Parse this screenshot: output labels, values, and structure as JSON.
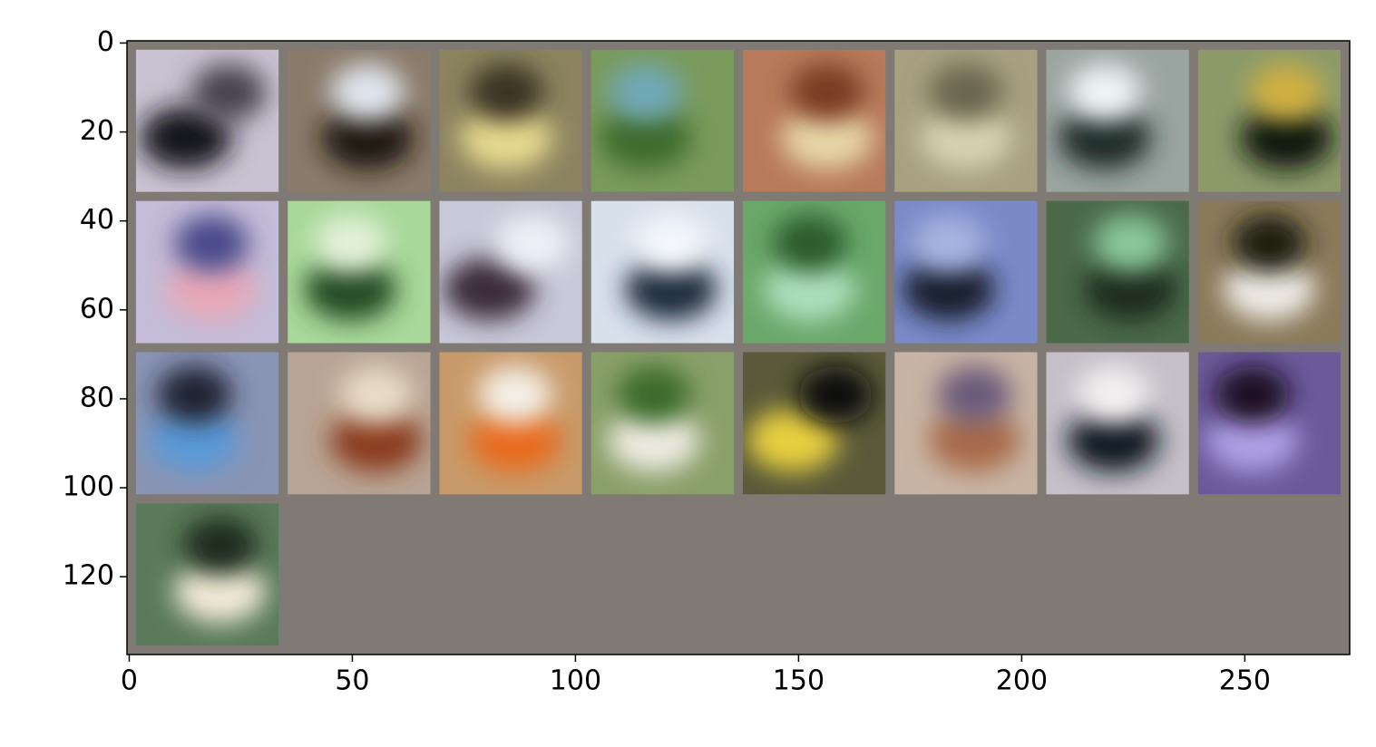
{
  "chart_data": {
    "type": "image",
    "xlim": [
      -0.5,
      273.5
    ],
    "ylim": [
      137.5,
      -0.5
    ],
    "xticks": [
      0,
      50,
      100,
      150,
      200,
      250
    ],
    "yticks": [
      0,
      20,
      40,
      60,
      80,
      100,
      120
    ],
    "background": "#7f7b74",
    "grid_columns": 8,
    "tile_colors": [
      [
        "#c9c2d2",
        "#15131c",
        "#4a4250"
      ],
      [
        "#8a7a6a",
        "#1a140e",
        "#e0e6ee"
      ],
      [
        "#8c8460",
        "#e8dc90",
        "#3a3320"
      ],
      [
        "#7a9a5c",
        "#3c6a2c",
        "#70a8b8"
      ],
      [
        "#b87a5a",
        "#e8d8a8",
        "#7a3a20"
      ],
      [
        "#a8a080",
        "#d8d4b0",
        "#6a6650"
      ],
      [
        "#9aa4a0",
        "#1e2a28",
        "#f0f4f8"
      ],
      [
        "#8c9a6a",
        "#0e140e",
        "#d0b040"
      ],
      [
        "#c4bcd8",
        "#e8a8b8",
        "#4a4a8a"
      ],
      [
        "#a8d89a",
        "#204a20",
        "#e4f0d8"
      ],
      [
        "#c8c8d8",
        "#3a2a3a",
        "#eef0f8"
      ],
      [
        "#d8e0ec",
        "#1a2a3a",
        "#f4f8fc"
      ],
      [
        "#6aa86a",
        "#b0e0c0",
        "#2a5a2a"
      ],
      [
        "#7a8ac8",
        "#141a2a",
        "#a8b4e0"
      ],
      [
        "#4a6a4a",
        "#1a2a1a",
        "#8ac89a"
      ],
      [
        "#8a7a5a",
        "#f0ece8",
        "#1a1a10"
      ],
      [
        "#8a94b4",
        "#5a9ad8",
        "#1a2230"
      ],
      [
        "#b8a494",
        "#8a3a1a",
        "#e8dcc8"
      ],
      [
        "#c89a6a",
        "#e86a1a",
        "#f4f0e8"
      ],
      [
        "#8aa06a",
        "#f0ece4",
        "#3a6a2a"
      ],
      [
        "#5a5a3a",
        "#e8d040",
        "#0a0a08"
      ],
      [
        "#c8b4a4",
        "#a86a4a",
        "#6a5a7a"
      ],
      [
        "#c4c0c8",
        "#0e1420",
        "#f4f0f0"
      ],
      [
        "#6a5a9a",
        "#b0a0e8",
        "#1a1020"
      ],
      [
        "#5a7a5a",
        "#f4ecd8",
        "#1a2a1a"
      ]
    ]
  }
}
